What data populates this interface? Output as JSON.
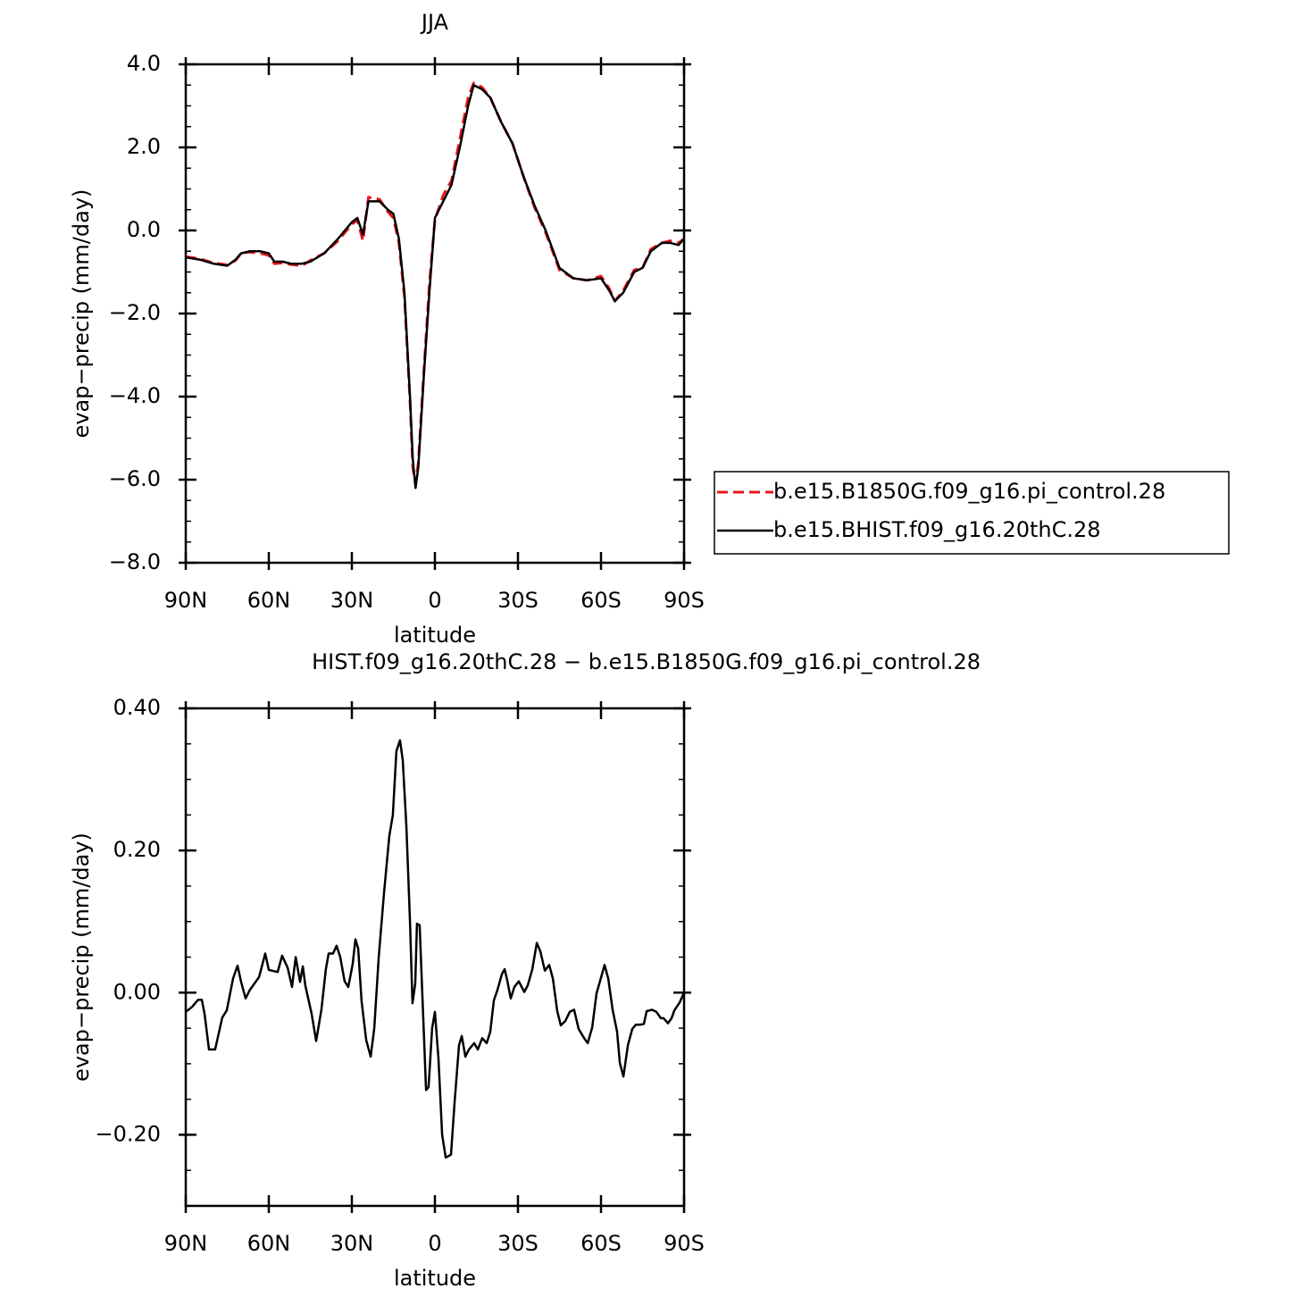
{
  "chart_data": [
    {
      "type": "line",
      "title": "JJA",
      "xlabel": "latitude",
      "ylabel": "evap−precip (mm/day)",
      "xlim": [
        90,
        -90
      ],
      "xticks": [
        {
          "value": 90,
          "label": "90N"
        },
        {
          "value": 60,
          "label": "60N"
        },
        {
          "value": 30,
          "label": "30N"
        },
        0,
        {
          "value": -30,
          "label": "30S"
        },
        {
          "value": -60,
          "label": "60S"
        },
        {
          "value": -90,
          "label": "90S"
        }
      ],
      "ylim": [
        -8,
        4
      ],
      "yticks": [
        {
          "value": -8,
          "label": "−8.0"
        },
        {
          "value": -6,
          "label": "−6.0"
        },
        {
          "value": -4,
          "label": "−4.0"
        },
        {
          "value": -2,
          "label": "−2.0"
        },
        {
          "value": 0,
          "label": "0.0"
        },
        {
          "value": 2,
          "label": "2.0"
        },
        {
          "value": 4,
          "label": "4.0"
        }
      ],
      "yminorticks": [
        -7.5,
        -7,
        -6.5,
        -5.5,
        -5,
        -4.5,
        -3.5,
        -3,
        -2.5,
        -1.5,
        -1,
        -0.5,
        0.5,
        1,
        1.5,
        2.5,
        3,
        3.5
      ],
      "legend": "right",
      "x": [
        90,
        85,
        80,
        75,
        72,
        70,
        67,
        63,
        60,
        58,
        55,
        52,
        48,
        45,
        40,
        35,
        30,
        28,
        26,
        24,
        20,
        17,
        15,
        13,
        11,
        9,
        8,
        7,
        6,
        4,
        2,
        0,
        -3,
        -6,
        -9,
        -12,
        -14,
        -17,
        -20,
        -24,
        -28,
        -32,
        -36,
        -40,
        -45,
        -50,
        -55,
        -60,
        -63,
        -65,
        -68,
        -72,
        -75,
        -78,
        -82,
        -85,
        -88,
        -90
      ],
      "series": [
        {
          "name": "b.e15.B1850G.f09_g16.pi_control.28",
          "color": "#e8141c",
          "dash": true,
          "values": [
            -0.63,
            -0.68,
            -0.78,
            -0.83,
            -0.72,
            -0.55,
            -0.52,
            -0.55,
            -0.6,
            -0.8,
            -0.78,
            -0.82,
            -0.85,
            -0.72,
            -0.55,
            -0.25,
            0.15,
            0.25,
            -0.25,
            0.8,
            0.75,
            0.45,
            0.3,
            -0.3,
            -1.6,
            -4.1,
            -5.7,
            -6.1,
            -5.6,
            -3.4,
            -1.3,
            0.25,
            0.85,
            1.2,
            2.2,
            3.2,
            3.55,
            3.45,
            3.2,
            2.6,
            2.1,
            1.3,
            0.55,
            -0.05,
            -0.95,
            -1.15,
            -1.2,
            -1.1,
            -1.4,
            -1.7,
            -1.45,
            -0.95,
            -0.9,
            -0.45,
            -0.3,
            -0.25,
            -0.3,
            -0.2
          ]
        },
        {
          "name": "b.e15.BHIST.f09_g16.20thC.28",
          "color": "#000000",
          "dash": false,
          "values": [
            -0.65,
            -0.7,
            -0.8,
            -0.85,
            -0.7,
            -0.55,
            -0.5,
            -0.5,
            -0.55,
            -0.75,
            -0.75,
            -0.8,
            -0.8,
            -0.75,
            -0.55,
            -0.2,
            0.2,
            0.3,
            -0.1,
            0.7,
            0.7,
            0.5,
            0.4,
            -0.2,
            -1.5,
            -4.0,
            -5.5,
            -6.2,
            -5.7,
            -3.5,
            -1.5,
            0.3,
            0.7,
            1.1,
            2.0,
            3.0,
            3.5,
            3.4,
            3.2,
            2.6,
            2.1,
            1.3,
            0.6,
            0.0,
            -0.9,
            -1.15,
            -1.2,
            -1.15,
            -1.45,
            -1.7,
            -1.5,
            -1.0,
            -0.9,
            -0.5,
            -0.3,
            -0.3,
            -0.35,
            -0.2
          ]
        }
      ]
    },
    {
      "type": "line",
      "title": "HIST.f09_g16.20thC.28 − b.e15.B1850G.f09_g16.pi_control.28",
      "xlabel": "latitude",
      "ylabel": "evap−precip (mm/day)",
      "xlim": [
        90,
        -90
      ],
      "xticks": [
        {
          "value": 90,
          "label": "90N"
        },
        {
          "value": 60,
          "label": "60N"
        },
        {
          "value": 30,
          "label": "30N"
        },
        0,
        {
          "value": -30,
          "label": "30S"
        },
        {
          "value": -60,
          "label": "60S"
        },
        {
          "value": -90,
          "label": "90S"
        }
      ],
      "ylim": [
        -0.3,
        0.4
      ],
      "yticks": [
        {
          "value": -0.2,
          "label": "−0.20"
        },
        {
          "value": 0,
          "label": "0.00"
        },
        {
          "value": 0.2,
          "label": "0.20"
        },
        {
          "value": 0.4,
          "label": "0.40"
        }
      ],
      "yminorticks": [
        -0.25,
        -0.15,
        -0.1,
        -0.05,
        0.05,
        0.1,
        0.15,
        0.25,
        0.3,
        0.35
      ],
      "x": [
        90,
        87.7,
        85.5,
        84.2,
        83.2,
        81.6,
        79.4,
        76.8,
        75.2,
        72.9,
        71.3,
        70,
        68.4,
        66.8,
        63.5,
        61.3,
        60,
        56.8,
        55.2,
        53.2,
        51.6,
        50.3,
        48.7,
        47.7,
        46.8,
        44.5,
        42.9,
        41,
        39.4,
        38.4,
        36.8,
        35.5,
        34.2,
        32.6,
        31.3,
        29.7,
        28.7,
        27.7,
        26.5,
        24.8,
        23.2,
        21.9,
        20.3,
        18.4,
        16.5,
        15.2,
        13.9,
        12.6,
        11.6,
        10.3,
        9,
        8.1,
        7.1,
        6.5,
        5.5,
        3.2,
        2.3,
        1,
        0,
        -1.3,
        -2.6,
        -3.9,
        -5.8,
        -7.1,
        -8.7,
        -9.7,
        -11,
        -12.3,
        -14.2,
        -15.5,
        -17.1,
        -18.7,
        -20,
        -21.3,
        -22.6,
        -24.2,
        -25.2,
        -26.1,
        -27.4,
        -28.7,
        -30.3,
        -32.3,
        -33.5,
        -35.2,
        -36.8,
        -38.1,
        -39.7,
        -41.3,
        -42.6,
        -44.2,
        -45.5,
        -47.1,
        -48.7,
        -50.3,
        -51.9,
        -53.9,
        -55.2,
        -56.8,
        -58.4,
        -61.3,
        -62.6,
        -64.2,
        -65.8,
        -66.8,
        -68.1,
        -69.7,
        -71.3,
        -72.6,
        -74.2,
        -75.5,
        -76.5,
        -78.4,
        -80,
        -81.6,
        -82.6,
        -84.2,
        -85.5,
        -86.5,
        -88.4,
        -90
      ],
      "series": [
        {
          "color": "#000000",
          "dash": false,
          "values": [
            -0.027,
            -0.02,
            -0.01,
            -0.01,
            -0.03,
            -0.08,
            -0.08,
            -0.035,
            -0.025,
            0.02,
            0.038,
            0.015,
            -0.008,
            0.004,
            0.022,
            0.055,
            0.032,
            0.029,
            0.052,
            0.035,
            0.008,
            0.05,
            0.015,
            0.037,
            0.01,
            -0.03,
            -0.068,
            -0.024,
            0.033,
            0.055,
            0.055,
            0.066,
            0.05,
            0.016,
            0.008,
            0.04,
            0.075,
            0.062,
            -0.012,
            -0.067,
            -0.09,
            -0.05,
            0.05,
            0.14,
            0.22,
            0.25,
            0.34,
            0.355,
            0.327,
            0.233,
            0.1,
            -0.015,
            0.013,
            0.097,
            0.095,
            -0.137,
            -0.133,
            -0.05,
            -0.027,
            -0.093,
            -0.2,
            -0.232,
            -0.228,
            -0.155,
            -0.074,
            -0.061,
            -0.09,
            -0.08,
            -0.071,
            -0.08,
            -0.064,
            -0.071,
            -0.055,
            -0.011,
            0.004,
            0.026,
            0.033,
            0.018,
            -0.008,
            0.008,
            0.016,
            0.001,
            0.01,
            0.033,
            0.07,
            0.058,
            0.031,
            0.039,
            0.02,
            -0.026,
            -0.046,
            -0.04,
            -0.027,
            -0.024,
            -0.051,
            -0.064,
            -0.071,
            -0.049,
            -0.001,
            0.039,
            0.02,
            -0.024,
            -0.055,
            -0.099,
            -0.118,
            -0.074,
            -0.051,
            -0.045,
            -0.045,
            -0.044,
            -0.026,
            -0.024,
            -0.027,
            -0.036,
            -0.036,
            -0.043,
            -0.036,
            -0.025,
            -0.014,
            0
          ]
        }
      ]
    }
  ]
}
